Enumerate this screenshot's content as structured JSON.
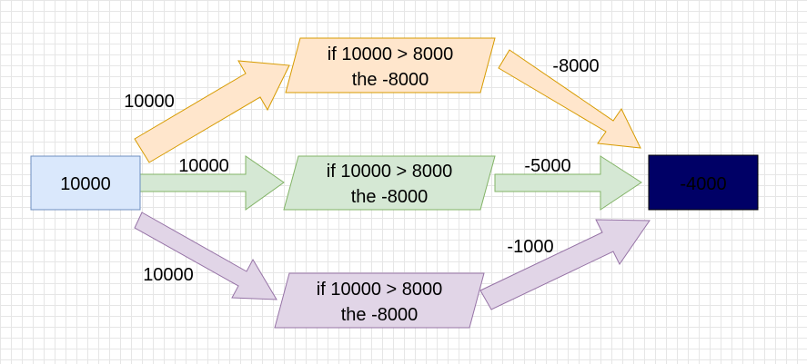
{
  "source_node": {
    "label": "10000",
    "fill": "#dae8fc",
    "stroke": "#6c8ebf"
  },
  "result_node": {
    "label": "-4000",
    "fill": "#000066",
    "stroke": "#000000",
    "text_color": "#ffffff"
  },
  "branches": [
    {
      "name": "top",
      "fill": "#ffe6cc",
      "stroke": "#d79b00",
      "condition_line1": "if 10000 > 8000",
      "condition_line2": "the -8000",
      "input_label": "10000",
      "output_label": "-8000"
    },
    {
      "name": "middle",
      "fill": "#d5e8d4",
      "stroke": "#82b366",
      "condition_line1": "if 10000 > 8000",
      "condition_line2": "the -8000",
      "input_label": "10000",
      "output_label": "-5000"
    },
    {
      "name": "bottom",
      "fill": "#e1d5e7",
      "stroke": "#9673a6",
      "condition_line1": "if 10000 > 8000",
      "condition_line2": "the -8000",
      "input_label": "10000",
      "output_label": "-1000"
    }
  ]
}
